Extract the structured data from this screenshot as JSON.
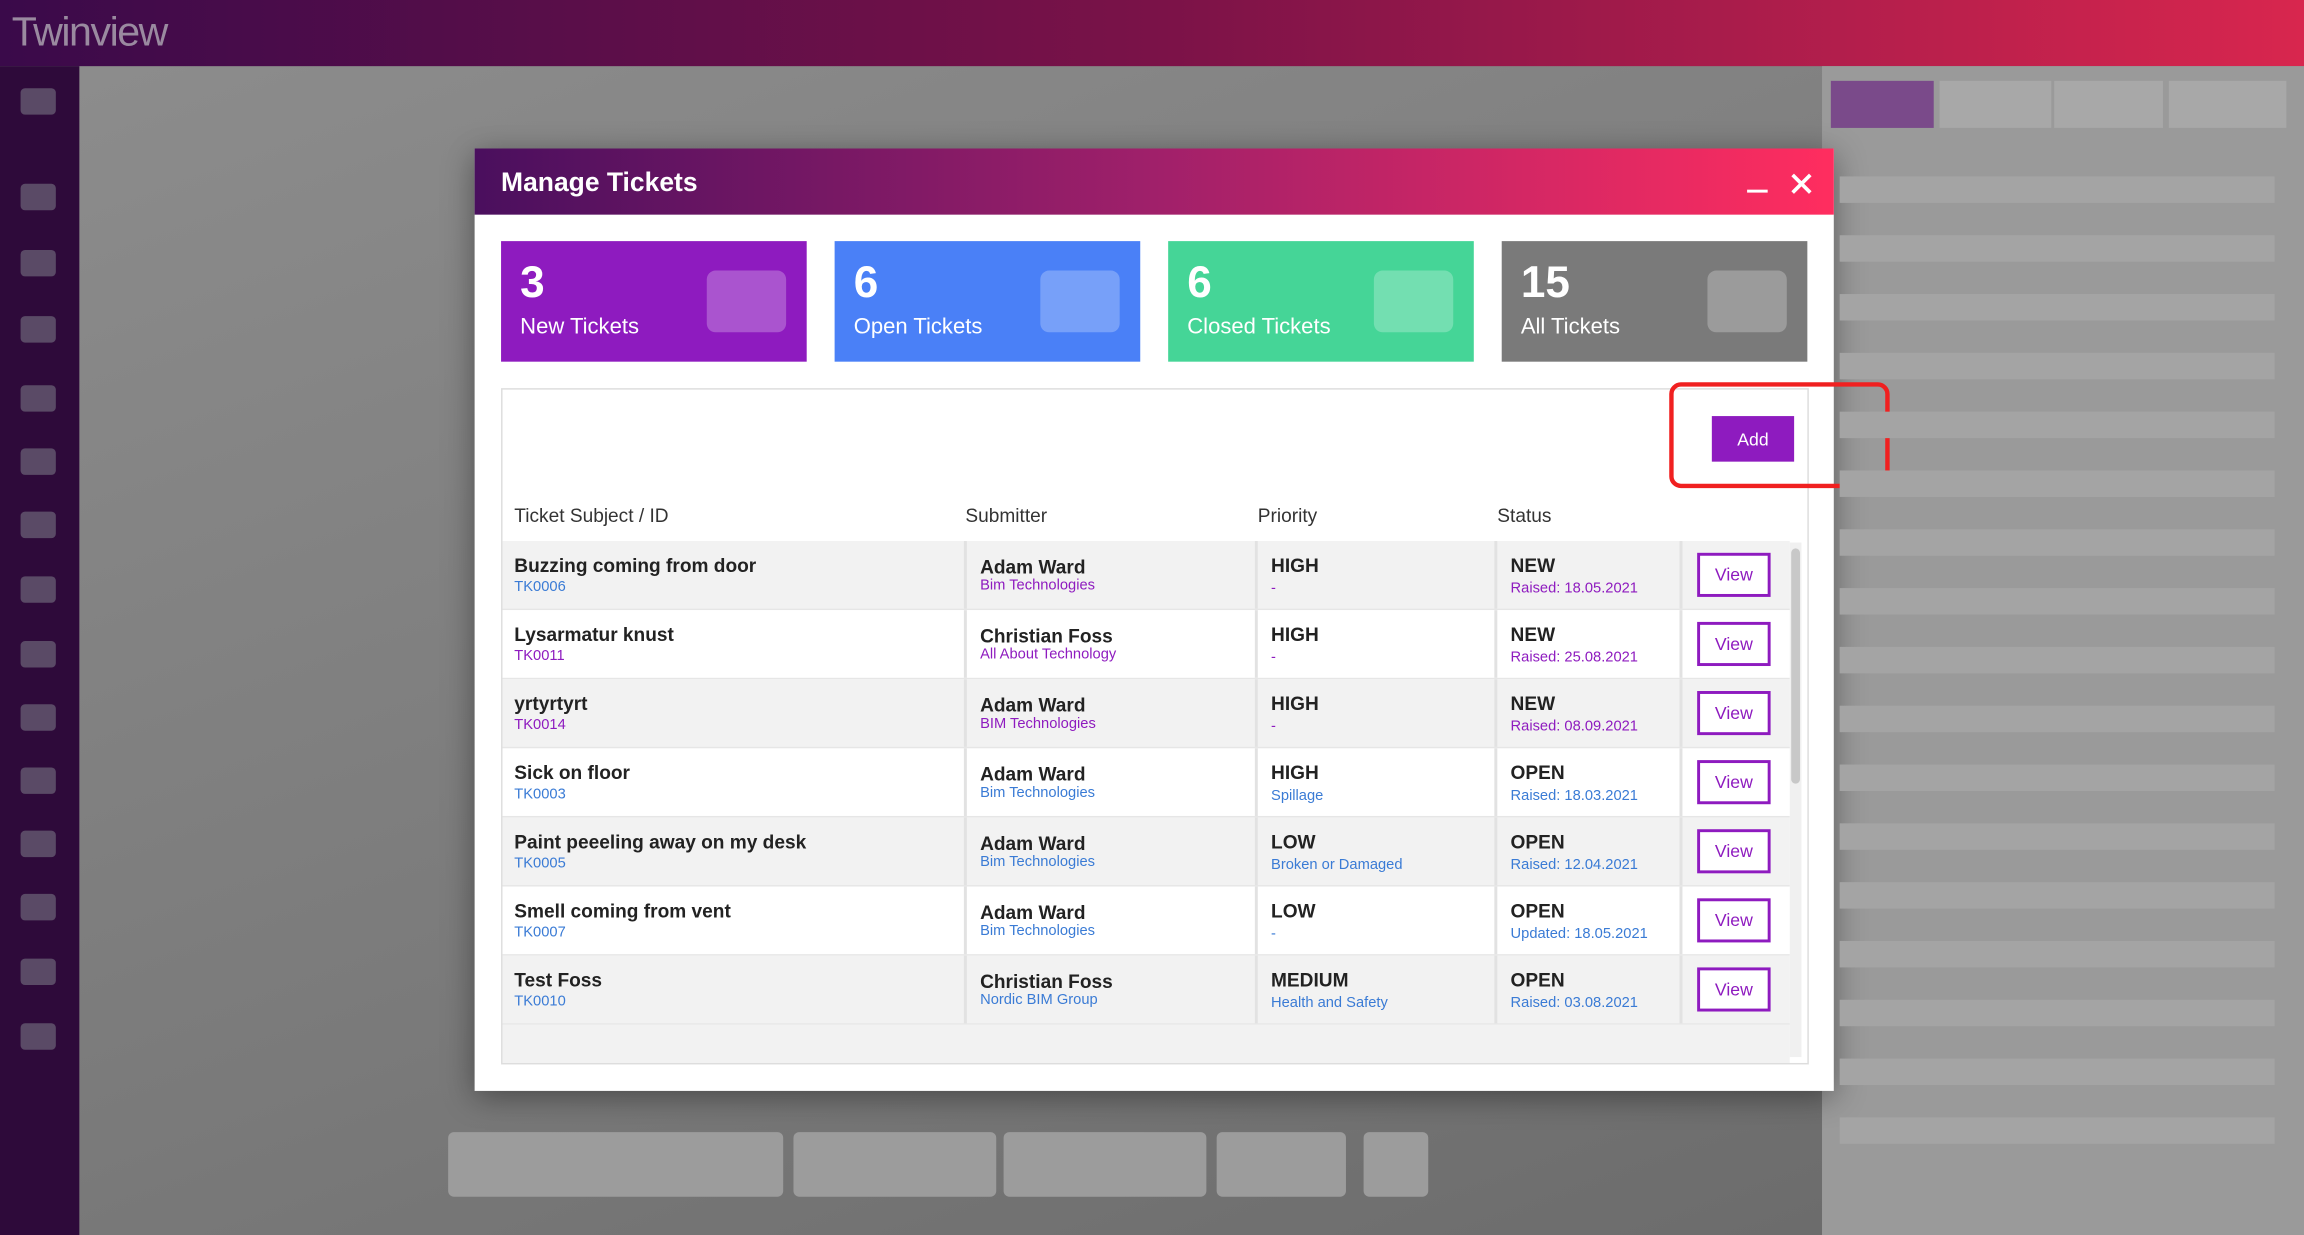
{
  "app": {
    "name": "Twinview"
  },
  "modal": {
    "title": "Manage Tickets",
    "cards": [
      {
        "count": 3,
        "label": "New Tickets",
        "color": "#8e1bbf"
      },
      {
        "count": 6,
        "label": "Open Tickets",
        "color": "#4a80f7"
      },
      {
        "count": 6,
        "label": "Closed Tickets",
        "color": "#45d597"
      },
      {
        "count": 15,
        "label": "All Tickets",
        "color": "#7a7a7a"
      }
    ],
    "add_button": "Add",
    "view_button": "View",
    "columns": [
      "Ticket Subject / ID",
      "Submitter",
      "Priority",
      "Status"
    ],
    "rows": [
      [
        "Buzzing coming from door",
        "TK0006",
        "Adam Ward",
        "Bim Technologies",
        "HIGH",
        "-",
        "NEW",
        "Raised: 18.05.2021"
      ],
      [
        "Lysarmatur knust",
        "TK0011",
        "Christian Foss",
        "All About Technology",
        "HIGH",
        "-",
        "NEW",
        "Raised: 25.08.2021"
      ],
      [
        "yrtyrtyrt",
        "TK0014",
        "Adam Ward",
        "BIM Technologies",
        "HIGH",
        "-",
        "NEW",
        "Raised: 08.09.2021"
      ],
      [
        "Sick on floor",
        "TK0003",
        "Adam Ward",
        "Bim Technologies",
        "HIGH",
        "Spillage",
        "OPEN",
        "Raised: 18.03.2021"
      ],
      [
        "Paint peeeling away on my desk",
        "TK0005",
        "Adam Ward",
        "Bim Technologies",
        "LOW",
        "Broken or Damaged",
        "OPEN",
        "Raised: 12.04.2021"
      ],
      [
        "Smell coming from vent",
        "TK0007",
        "Adam Ward",
        "Bim Technologies",
        "LOW",
        "-",
        "OPEN",
        "Updated: 18.05.2021"
      ],
      [
        "Test Foss",
        "TK0010",
        "Christian Foss",
        "Nordic BIM Group",
        "MEDIUM",
        "Health and Safety",
        "OPEN",
        "Raised: 03.08.2021"
      ]
    ]
  }
}
